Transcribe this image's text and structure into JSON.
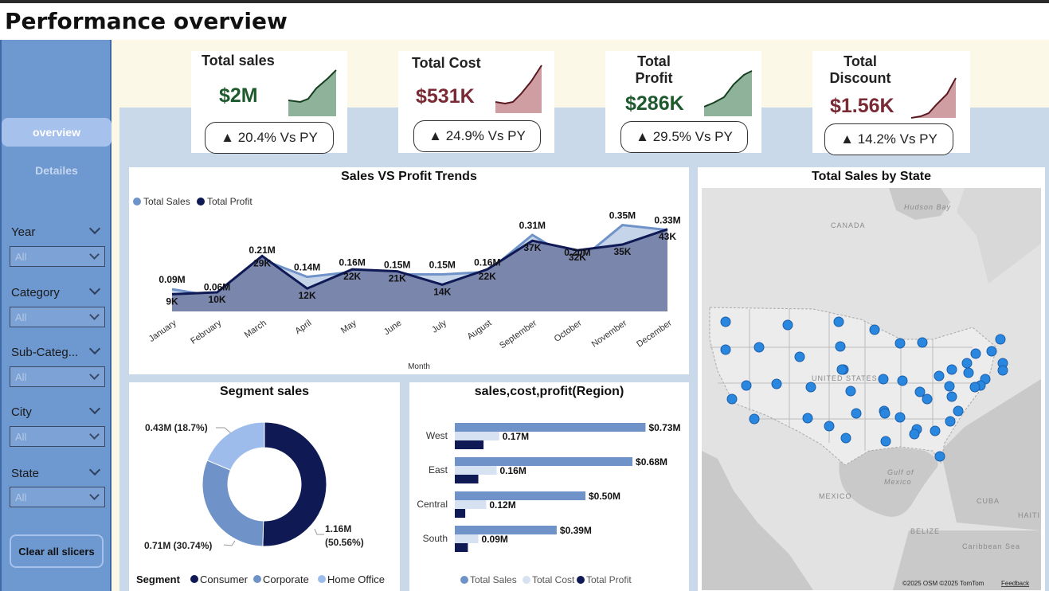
{
  "header": {
    "title": "Performance overview"
  },
  "nav": {
    "overview": "overview",
    "details": "Detailes"
  },
  "slicers": [
    {
      "label": "Year",
      "value": "All"
    },
    {
      "label": "Category",
      "value": "All"
    },
    {
      "label": "Sub-Categ...",
      "value": "All"
    },
    {
      "label": "City",
      "value": "All"
    },
    {
      "label": "State",
      "value": "All"
    }
  ],
  "clear_button": "Clear all slicers",
  "kpis": [
    {
      "title": "Total sales",
      "value": "$2M",
      "delta": "▲ 20.4% Vs PY",
      "value_color": "#1f5a2e",
      "spark_fill": "#8fb39a",
      "spark_stroke": "#16401f"
    },
    {
      "title": "Total Cost",
      "value": "$531K",
      "delta": "▲ 24.9% Vs PY",
      "value_color": "#7a2a35",
      "spark_fill": "#cf9ea3",
      "spark_stroke": "#5a1820"
    },
    {
      "title": "Total Profit",
      "value": "$286K",
      "delta": "▲ 29.5% Vs PY",
      "value_color": "#1f5a2e",
      "spark_fill": "#8fb39a",
      "spark_stroke": "#16401f"
    },
    {
      "title": "Total Discount",
      "value": "$1.56K",
      "delta": "▲ 14.2% Vs PY",
      "value_color": "#7a2a35",
      "spark_fill": "#cf9ea3",
      "spark_stroke": "#5a1820"
    }
  ],
  "trend": {
    "title": "Sales VS Profit Trends",
    "xlabel": "Month",
    "legend": [
      "Total Sales",
      "Total Profit"
    ]
  },
  "segment": {
    "title": "Segment sales",
    "legend_title": "Segment",
    "labels": [
      "1.16M",
      "(50.56%)",
      "0.71M (30.74%)",
      "0.43M (18.7%)"
    ]
  },
  "region": {
    "title": "sales,cost,profit(Region)",
    "legend": [
      "Total Sales",
      "Total Cost",
      "Total Profit"
    ]
  },
  "map": {
    "title": "Total Sales by State",
    "labels": [
      "Hudson Bay",
      "CANADA",
      "UNITED STATES",
      "Gulf of",
      "Mexico",
      "MEXICO",
      "Caribbean Sea",
      "CUBA",
      "HAITI",
      "BELIZE"
    ],
    "attribution": "©2025 OSM  ©2025 TomTom",
    "feedback": "Feedback"
  },
  "colors": {
    "sales": "#6f93c8",
    "sales_area": "#c6d4ea",
    "profit": "#0f1a55",
    "profit_area": "#7b86ad",
    "cost": "#d6e1f1",
    "consumer": "#0f1a55",
    "corporate": "#6f93c8",
    "home_office": "#9dbcec",
    "map_dot": "#2a87e0"
  },
  "chart_data": [
    {
      "type": "area",
      "title": "Sales VS Profit Trends",
      "xlabel": "Month",
      "categories": [
        "January",
        "February",
        "March",
        "April",
        "May",
        "June",
        "July",
        "August",
        "September",
        "October",
        "November",
        "December"
      ],
      "series": [
        {
          "name": "Total Sales",
          "values": [
            0.09,
            0.06,
            0.21,
            0.14,
            0.16,
            0.15,
            0.15,
            0.16,
            0.31,
            0.2,
            0.35,
            0.33
          ],
          "labels": [
            "0.09M",
            "0.06M",
            "0.21M",
            "0.14M",
            "0.16M",
            "0.15M",
            "0.15M",
            "0.16M",
            "0.31M",
            "0.20M",
            "0.35M",
            "0.33M"
          ]
        },
        {
          "name": "Total Profit",
          "values": [
            9,
            10,
            29,
            12,
            22,
            21,
            14,
            22,
            37,
            32,
            35,
            43
          ],
          "labels": [
            "9K",
            "10K",
            "29K",
            "12K",
            "22K",
            "21K",
            "14K",
            "22K",
            "37K",
            "32K",
            "35K",
            "43K"
          ]
        }
      ]
    },
    {
      "type": "pie",
      "title": "Segment sales",
      "categories": [
        "Consumer",
        "Corporate",
        "Home Office"
      ],
      "values": [
        1.16,
        0.71,
        0.43
      ],
      "percent": [
        50.56,
        30.74,
        18.7
      ]
    },
    {
      "type": "bar",
      "title": "sales,cost,profit(Region)",
      "categories": [
        "West",
        "East",
        "Central",
        "South"
      ],
      "series": [
        {
          "name": "Total Sales",
          "values": [
            0.73,
            0.68,
            0.5,
            0.39
          ],
          "labels": [
            "$0.73M",
            "$0.68M",
            "$0.50M",
            "$0.39M"
          ]
        },
        {
          "name": "Total Cost",
          "values": [
            0.17,
            0.16,
            0.12,
            0.09
          ],
          "labels": [
            "0.17M",
            "0.16M",
            "0.12M",
            "0.09M"
          ]
        },
        {
          "name": "Total Profit",
          "values": [
            0.11,
            0.09,
            0.04,
            0.05
          ]
        }
      ]
    }
  ]
}
